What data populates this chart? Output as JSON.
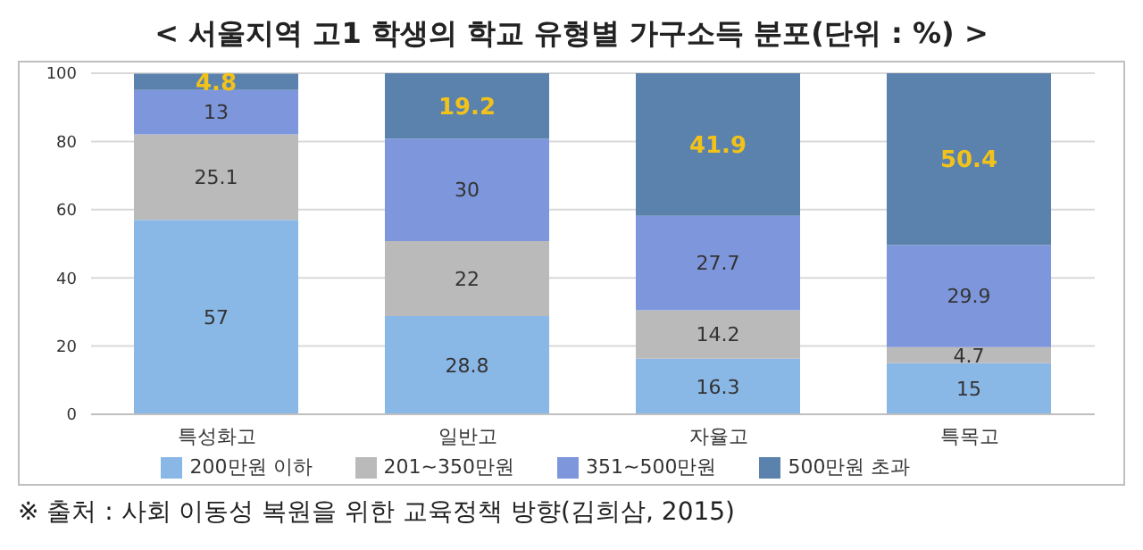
{
  "chart_data": {
    "type": "bar",
    "title": "< 서울지역 고1 학생의 학교 유형별 가구소득 분포(단위 : %) >",
    "categories": [
      "특성화고",
      "일반고",
      "자율고",
      "특목고"
    ],
    "stacked": true,
    "series": [
      {
        "name": "200만원 이하",
        "color": "#8ab8e6",
        "values": [
          57,
          28.8,
          16.3,
          15
        ]
      },
      {
        "name": "201~350만원",
        "color": "#bababa",
        "values": [
          25.1,
          22,
          14.2,
          4.7
        ]
      },
      {
        "name": "351~500만원",
        "color": "#7e97dc",
        "values": [
          13,
          30,
          27.7,
          29.9
        ]
      },
      {
        "name": "500만원 초과",
        "color": "#5a82ad",
        "values": [
          4.8,
          19.2,
          41.9,
          50.4
        ]
      }
    ],
    "ylim": [
      0,
      100
    ],
    "yticks": [
      0,
      20,
      40,
      60,
      80,
      100
    ],
    "grid": "y",
    "legend": "bottom",
    "data_labels": true,
    "annotations": [
      "※ 출처 : 사회 이동성 복원을 위한 교육정책 방향(김희삼, 2015)"
    ]
  }
}
